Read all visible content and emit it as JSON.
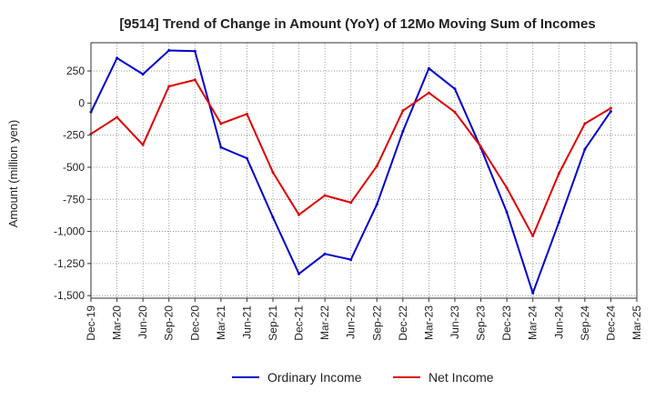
{
  "chart_data": {
    "type": "line",
    "title": "[9514]  Trend of Change in Amount (YoY) of 12Mo Moving Sum of Incomes",
    "xlabel": "",
    "ylabel": "Amount (million yen)",
    "categories": [
      "Dec-19",
      "Mar-20",
      "Jun-20",
      "Sep-20",
      "Dec-20",
      "Mar-21",
      "Jun-21",
      "Sep-21",
      "Dec-21",
      "Mar-22",
      "Jun-22",
      "Sep-22",
      "Dec-22",
      "Mar-23",
      "Jun-23",
      "Sep-23",
      "Dec-23",
      "Mar-24",
      "Jun-24",
      "Sep-24",
      "Dec-24",
      "Mar-25"
    ],
    "ylim": [
      -1520,
      470
    ],
    "yticks": [
      250,
      0,
      -250,
      -500,
      -750,
      -1000,
      -1250,
      -1500
    ],
    "ytick_labels": [
      "250",
      "0",
      "-250",
      "-500",
      "-750",
      "-1,000",
      "-1,250",
      "-1,500"
    ],
    "grid": true,
    "legend_position": "bottom-center",
    "series": [
      {
        "name": "Ordinary Income",
        "color": "#0000cc",
        "values": [
          -70,
          350,
          225,
          410,
          405,
          -345,
          -430,
          -890,
          -1330,
          -1175,
          -1220,
          -790,
          -220,
          270,
          110,
          -350,
          -850,
          -1480,
          -930,
          -360,
          -65,
          null
        ]
      },
      {
        "name": "Net Income",
        "color": "#dd0000",
        "values": [
          -240,
          -110,
          -325,
          130,
          180,
          -160,
          -85,
          -540,
          -870,
          -720,
          -775,
          -490,
          -60,
          80,
          -70,
          -340,
          -660,
          -1035,
          -550,
          -160,
          -40,
          null
        ]
      }
    ]
  }
}
